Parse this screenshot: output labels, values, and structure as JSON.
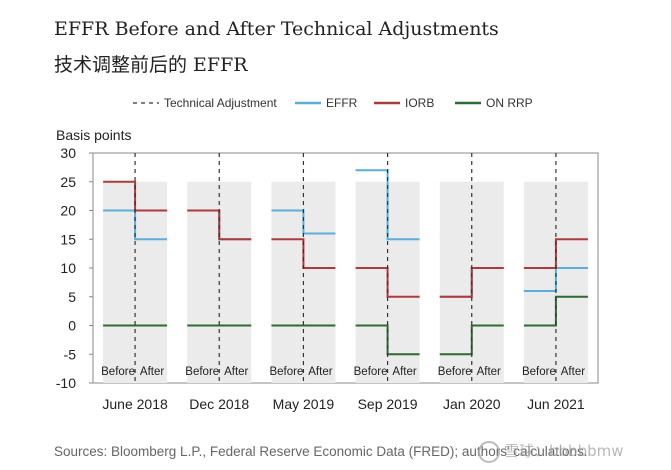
{
  "title_en": "EFFR Before and After Technical Adjustments",
  "title_zh": "技术调整前后的 EFFR",
  "source": "Sources: Bloomberg L.P., Federal Reserve Economic Data (FRED); authors' calculations.",
  "watermark": "雪球：bbbbbmw",
  "chart_data": {
    "type": "line",
    "title": "EFFR Before and After Technical Adjustments",
    "ylabel": "Basis points",
    "ylim": [
      -10,
      30
    ],
    "yticks": [
      30,
      25,
      20,
      15,
      10,
      5,
      0,
      -5,
      -10
    ],
    "shade_top": 25,
    "grid": false,
    "legend_position": "top",
    "legend": [
      {
        "name": "Technical Adjustment",
        "color": "#333333",
        "style": "dashed"
      },
      {
        "name": "EFFR",
        "color": "#5aaedc",
        "style": "solid"
      },
      {
        "name": "IORB",
        "color": "#b03a3a",
        "style": "solid"
      },
      {
        "name": "ON RRP",
        "color": "#2e6b2e",
        "style": "solid"
      }
    ],
    "sublabels": [
      "Before",
      "After"
    ],
    "periods": [
      {
        "label": "June 2018",
        "EFFR": [
          20,
          15
        ],
        "IORB": [
          25,
          20
        ],
        "ON RRP": [
          0,
          0
        ]
      },
      {
        "label": "Dec 2018",
        "EFFR": [
          20,
          15
        ],
        "IORB": [
          20,
          15
        ],
        "ON RRP": [
          0,
          0
        ]
      },
      {
        "label": "May 2019",
        "EFFR": [
          20,
          16
        ],
        "IORB": [
          15,
          10
        ],
        "ON RRP": [
          0,
          0
        ]
      },
      {
        "label": "Sep 2019",
        "EFFR": [
          27,
          15
        ],
        "IORB": [
          10,
          5
        ],
        "ON RRP": [
          0,
          -5
        ]
      },
      {
        "label": "Jan 2020",
        "EFFR": [
          5,
          10
        ],
        "IORB": [
          5,
          10
        ],
        "ON RRP": [
          -5,
          0
        ]
      },
      {
        "label": "Jun 2021",
        "EFFR": [
          6,
          10
        ],
        "IORB": [
          10,
          15
        ],
        "ON RRP": [
          0,
          5
        ]
      }
    ]
  }
}
